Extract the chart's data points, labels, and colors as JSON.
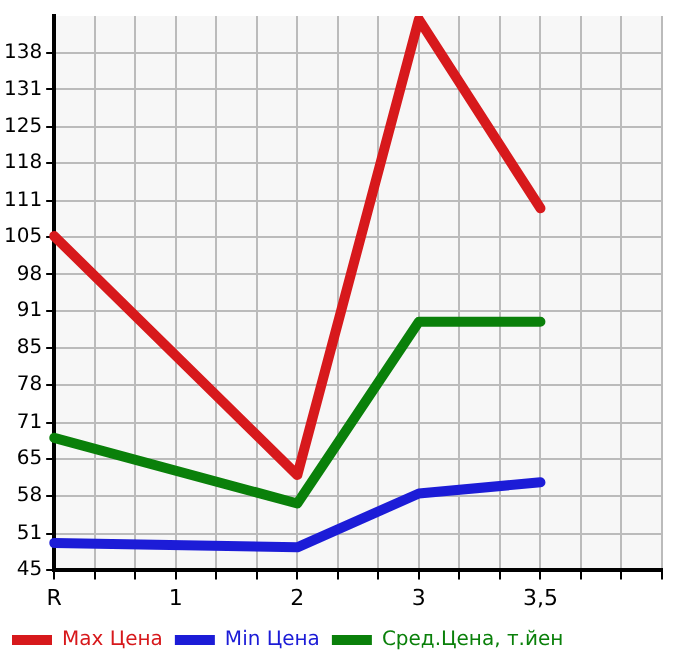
{
  "chart_data": {
    "type": "line",
    "categories": [
      "R",
      null,
      null,
      "1",
      null,
      null,
      "2",
      null,
      null,
      "3",
      null,
      null,
      "3,5",
      null,
      null,
      null
    ],
    "series": [
      {
        "name": "Max Цена",
        "color": "#d7191c",
        "values": [
          105,
          null,
          null,
          null,
          null,
          null,
          62,
          null,
          null,
          144,
          null,
          null,
          110,
          null,
          null,
          null
        ]
      },
      {
        "name": "Min Цена",
        "color": "#1c1cd7",
        "values": [
          49.8,
          null,
          null,
          null,
          null,
          null,
          49,
          null,
          null,
          58.7,
          null,
          null,
          60.7,
          null,
          null,
          null
        ]
      },
      {
        "name": "Сред.Цена, т.йен",
        "color": "#0a800a",
        "values": [
          68.7,
          null,
          null,
          null,
          null,
          null,
          56.9,
          null,
          null,
          89.6,
          null,
          null,
          89.6,
          null,
          null,
          null
        ]
      }
    ],
    "ylim": [
      45,
      144.6
    ],
    "yticks": [
      45,
      {
        "value": 51.4,
        "label": "51"
      },
      {
        "value": 58.3,
        "label": "58"
      },
      {
        "value": 64.9,
        "label": "65"
      },
      {
        "value": 71.4,
        "label": "71"
      },
      {
        "value": 78.2,
        "label": "78"
      },
      {
        "value": 84.9,
        "label": "85"
      },
      {
        "value": 91.5,
        "label": "91"
      },
      {
        "value": 98.1,
        "label": "98"
      },
      {
        "value": 104.8,
        "label": "105"
      },
      {
        "value": 111.4,
        "label": "111"
      },
      {
        "value": 118.1,
        "label": "118"
      },
      {
        "value": 124.7,
        "label": "125"
      },
      {
        "value": 131.4,
        "label": "131"
      },
      138
    ],
    "grid": true,
    "legend": "bottom",
    "marker": "none",
    "line_style": "solid"
  }
}
